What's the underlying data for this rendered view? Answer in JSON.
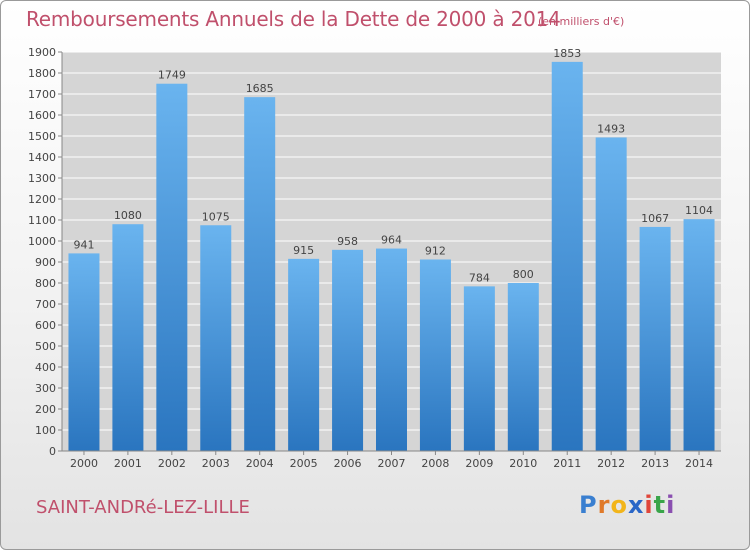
{
  "header": {
    "title": "Remboursements Annuels de la Dette de 2000 à 2014",
    "subtitle": "(en milliers d'€)"
  },
  "footer": {
    "commune": "SAINT-ANDRé-LEZ-LILLE",
    "brand": {
      "letters": [
        "P",
        "r",
        "o",
        "x",
        "i",
        "t",
        "i"
      ],
      "colors": [
        "#3a7fd0",
        "#e07a2a",
        "#f2b51a",
        "#2a66c7",
        "#e0463a",
        "#3aa54a",
        "#8a4fb0"
      ]
    }
  },
  "colors": {
    "bar_top": "#6ab4ef",
    "bar_bottom": "#2a75bf",
    "grid": "#ffffff",
    "axis": "#888888",
    "text": "#444444",
    "title": "#c0506c"
  },
  "chart_data": {
    "type": "bar",
    "title": "Remboursements Annuels de la Dette de 2000 à 2014",
    "xlabel": "",
    "ylabel": "",
    "categories": [
      "2000",
      "2001",
      "2002",
      "2003",
      "2004",
      "2005",
      "2006",
      "2007",
      "2008",
      "2009",
      "2010",
      "2011",
      "2012",
      "2013",
      "2014"
    ],
    "values": [
      941,
      1080,
      1749,
      1075,
      1685,
      915,
      958,
      964,
      912,
      784,
      800,
      1853,
      1493,
      1067,
      1104
    ],
    "ylim": [
      0,
      1900
    ],
    "yticks": [
      0,
      100,
      200,
      300,
      400,
      500,
      600,
      700,
      800,
      900,
      1000,
      1100,
      1200,
      1300,
      1400,
      1500,
      1600,
      1700,
      1800,
      1900
    ],
    "grid": true,
    "data_labels": true
  }
}
